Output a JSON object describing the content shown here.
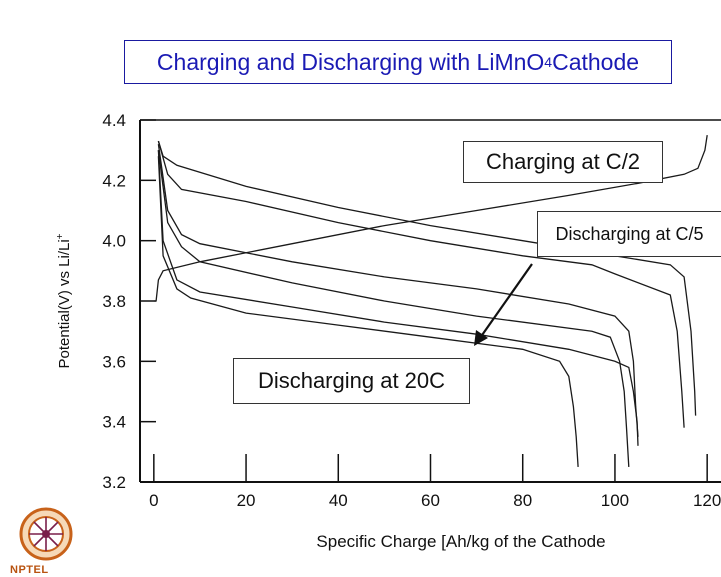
{
  "title": {
    "prefix": "Charging and Discharging with LiMnO",
    "subscript": "4",
    "suffix": "Cathode"
  },
  "callouts": {
    "charging": "Charging at C/2",
    "discharging_slow": "Discharging at C/5",
    "discharging_fast": "Discharging at 20C"
  },
  "logo": {
    "text": "NPTEL",
    "icon": "nptel-wheel-logo"
  },
  "chart_data": {
    "type": "line",
    "title": "",
    "xlabel": "Specific Charge  [Ah/kg of the Cathode",
    "ylabel_base": "Potential(V) vs Li/Li",
    "ylabel_sup": "+",
    "xlim": [
      -3,
      123
    ],
    "ylim": [
      3.2,
      4.4
    ],
    "xticks": [
      0,
      20,
      40,
      60,
      80,
      100,
      120
    ],
    "yticks": [
      "3.2",
      "3.4",
      "3.6",
      "3.8",
      "4.0",
      "4.2",
      "4.4"
    ],
    "grid": false,
    "series": [
      {
        "points": [
          [
            0,
            3.8
          ],
          [
            0.5,
            3.8
          ],
          [
            1,
            3.87
          ],
          [
            2,
            3.9
          ],
          [
            10,
            3.93
          ],
          [
            30,
            3.99
          ],
          [
            50,
            4.05
          ],
          [
            70,
            4.1
          ],
          [
            90,
            4.15
          ],
          [
            105,
            4.19
          ],
          [
            115,
            4.22
          ],
          [
            118,
            4.24
          ],
          [
            119.5,
            4.3
          ],
          [
            120,
            4.35
          ]
        ]
      },
      {
        "points": [
          [
            1,
            4.33
          ],
          [
            2,
            4.28
          ],
          [
            5,
            4.25
          ],
          [
            20,
            4.18
          ],
          [
            40,
            4.11
          ],
          [
            60,
            4.05
          ],
          [
            80,
            4.0
          ],
          [
            100,
            3.95
          ],
          [
            112,
            3.92
          ],
          [
            115,
            3.88
          ],
          [
            116.5,
            3.7
          ],
          [
            117.3,
            3.5
          ],
          [
            117.5,
            3.42
          ]
        ]
      },
      {
        "points": [
          [
            1,
            4.33
          ],
          [
            3,
            4.22
          ],
          [
            6,
            4.17
          ],
          [
            20,
            4.13
          ],
          [
            40,
            4.06
          ],
          [
            60,
            4.0
          ],
          [
            80,
            3.95
          ],
          [
            95,
            3.92
          ],
          [
            100,
            3.89
          ],
          [
            112,
            3.82
          ],
          [
            113.5,
            3.7
          ],
          [
            114.5,
            3.5
          ],
          [
            115,
            3.38
          ]
        ]
      },
      {
        "points": [
          [
            1,
            4.32
          ],
          [
            3,
            4.1
          ],
          [
            6,
            4.02
          ],
          [
            10,
            3.99
          ],
          [
            30,
            3.93
          ],
          [
            50,
            3.88
          ],
          [
            70,
            3.84
          ],
          [
            90,
            3.79
          ],
          [
            100,
            3.75
          ],
          [
            103,
            3.7
          ],
          [
            104,
            3.6
          ],
          [
            104.5,
            3.45
          ],
          [
            105,
            3.35
          ]
        ]
      },
      {
        "points": [
          [
            1,
            4.3
          ],
          [
            3,
            4.06
          ],
          [
            6,
            3.98
          ],
          [
            10,
            3.93
          ],
          [
            30,
            3.86
          ],
          [
            50,
            3.8
          ],
          [
            70,
            3.75
          ],
          [
            95,
            3.7
          ],
          [
            99,
            3.68
          ],
          [
            101,
            3.6
          ],
          [
            102,
            3.5
          ],
          [
            102.5,
            3.38
          ],
          [
            103,
            3.25
          ]
        ]
      },
      {
        "points": [
          [
            1,
            4.3
          ],
          [
            2,
            4.0
          ],
          [
            5,
            3.87
          ],
          [
            10,
            3.83
          ],
          [
            30,
            3.78
          ],
          [
            50,
            3.73
          ],
          [
            70,
            3.69
          ],
          [
            90,
            3.64
          ],
          [
            100,
            3.6
          ],
          [
            103,
            3.58
          ],
          [
            104,
            3.5
          ],
          [
            104.8,
            3.4
          ],
          [
            105,
            3.32
          ]
        ]
      },
      {
        "points": [
          [
            1,
            4.28
          ],
          [
            2,
            3.95
          ],
          [
            5,
            3.84
          ],
          [
            8,
            3.81
          ],
          [
            20,
            3.76
          ],
          [
            40,
            3.72
          ],
          [
            60,
            3.68
          ],
          [
            80,
            3.64
          ],
          [
            88,
            3.6
          ],
          [
            90,
            3.55
          ],
          [
            91,
            3.45
          ],
          [
            91.6,
            3.35
          ],
          [
            92,
            3.25
          ]
        ]
      }
    ]
  }
}
